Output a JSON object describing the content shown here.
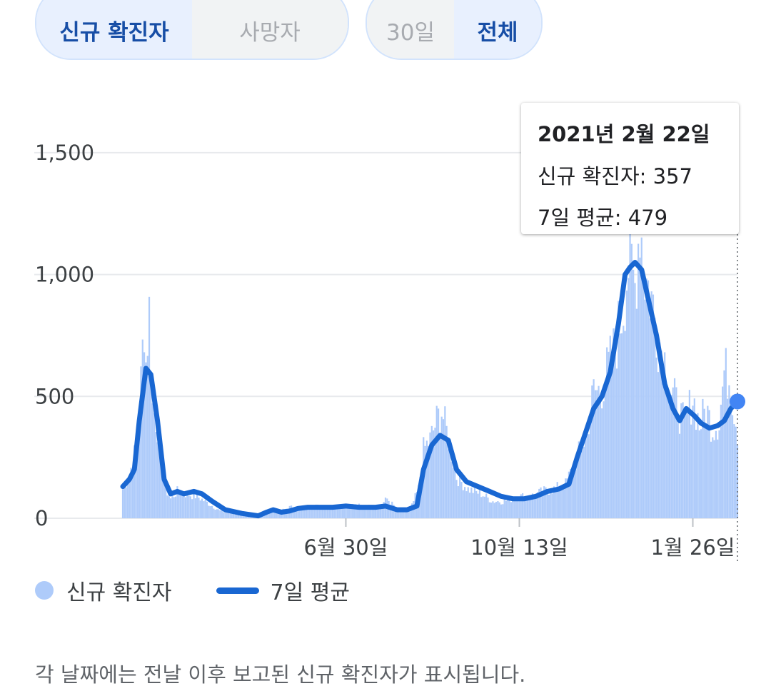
{
  "metric_toggle": {
    "options": [
      "신규 확진자",
      "사망자"
    ],
    "selected": 0
  },
  "range_toggle": {
    "options": [
      "30일",
      "전체"
    ],
    "selected": 1
  },
  "tooltip": {
    "date": "2021년 2월 22일",
    "cases_line": "신규 확진자: 357",
    "avg_line": "7일 평균: 479"
  },
  "legend": {
    "cases": "신규 확진자",
    "avg": "7일 평균"
  },
  "footnote": "각 날짜에는 전날 이후 보고된 신규 확진자가 표시됩니다.",
  "colors": {
    "bars": "#aecbfa",
    "line": "#1967d2",
    "marker": "#4285f4",
    "grid": "#e8eaed"
  },
  "chart_data": {
    "type": "bar",
    "x_start": "2020-02-16",
    "x_end": "2021-02-22",
    "ylim": [
      0,
      1650
    ],
    "yticks": [
      {
        "value": 0,
        "label": "0"
      },
      {
        "value": 500,
        "label": "500"
      },
      {
        "value": 1000,
        "label": "1,000"
      },
      {
        "value": 1500,
        "label": "1,500"
      }
    ],
    "xticks": [
      {
        "date": "2020-06-30",
        "label": "6월 30일"
      },
      {
        "date": "2020-10-13",
        "label": "10월 13일"
      },
      {
        "date": "2021-01-26",
        "label": "1월 26일"
      }
    ],
    "series": [
      {
        "name": "신규 확진자",
        "kind": "bar",
        "points": [
          [
            "2020-02-16",
            120
          ],
          [
            "2020-02-20",
            180
          ],
          [
            "2020-02-23",
            260
          ],
          [
            "2020-02-25",
            330
          ],
          [
            "2020-02-27",
            560
          ],
          [
            "2020-02-29",
            820
          ],
          [
            "2020-03-01",
            640
          ],
          [
            "2020-03-03",
            850
          ],
          [
            "2020-03-05",
            460
          ],
          [
            "2020-03-08",
            380
          ],
          [
            "2020-03-10",
            250
          ],
          [
            "2020-03-13",
            120
          ],
          [
            "2020-03-16",
            80
          ],
          [
            "2020-03-20",
            110
          ],
          [
            "2020-03-25",
            100
          ],
          [
            "2020-04-01",
            90
          ],
          [
            "2020-04-08",
            60
          ],
          [
            "2020-04-15",
            30
          ],
          [
            "2020-04-25",
            15
          ],
          [
            "2020-05-05",
            5
          ],
          [
            "2020-05-10",
            25
          ],
          [
            "2020-05-15",
            30
          ],
          [
            "2020-05-20",
            25
          ],
          [
            "2020-05-27",
            45
          ],
          [
            "2020-06-03",
            45
          ],
          [
            "2020-06-10",
            50
          ],
          [
            "2020-06-17",
            48
          ],
          [
            "2020-06-24",
            50
          ],
          [
            "2020-06-30",
            55
          ],
          [
            "2020-07-10",
            50
          ],
          [
            "2020-07-20",
            45
          ],
          [
            "2020-07-25",
            80
          ],
          [
            "2020-08-01",
            30
          ],
          [
            "2020-08-08",
            35
          ],
          [
            "2020-08-13",
            120
          ],
          [
            "2020-08-16",
            280
          ],
          [
            "2020-08-20",
            320
          ],
          [
            "2020-08-24",
            400
          ],
          [
            "2020-08-27",
            440
          ],
          [
            "2020-09-01",
            300
          ],
          [
            "2020-09-05",
            170
          ],
          [
            "2020-09-12",
            120
          ],
          [
            "2020-09-20",
            100
          ],
          [
            "2020-09-27",
            70
          ],
          [
            "2020-10-04",
            70
          ],
          [
            "2020-10-13",
            90
          ],
          [
            "2020-10-20",
            90
          ],
          [
            "2020-10-27",
            110
          ],
          [
            "2020-11-03",
            120
          ],
          [
            "2020-11-10",
            140
          ],
          [
            "2020-11-17",
            250
          ],
          [
            "2020-11-22",
            330
          ],
          [
            "2020-11-27",
            520
          ],
          [
            "2020-12-01",
            520
          ],
          [
            "2020-12-05",
            600
          ],
          [
            "2020-12-10",
            700
          ],
          [
            "2020-12-15",
            880
          ],
          [
            "2020-12-18",
            1050
          ],
          [
            "2020-12-22",
            950
          ],
          [
            "2020-12-25",
            1240
          ],
          [
            "2020-12-28",
            1000
          ],
          [
            "2021-01-01",
            900
          ],
          [
            "2021-01-05",
            750
          ],
          [
            "2021-01-09",
            650
          ],
          [
            "2021-01-13",
            520
          ],
          [
            "2021-01-17",
            450
          ],
          [
            "2021-01-21",
            380
          ],
          [
            "2021-01-26",
            500
          ],
          [
            "2021-01-30",
            380
          ],
          [
            "2021-02-03",
            450
          ],
          [
            "2021-02-07",
            370
          ],
          [
            "2021-02-11",
            400
          ],
          [
            "2021-02-14",
            600
          ],
          [
            "2021-02-17",
            580
          ],
          [
            "2021-02-20",
            450
          ],
          [
            "2021-02-22",
            357
          ]
        ]
      },
      {
        "name": "7일 평균",
        "kind": "line",
        "points": [
          [
            "2020-02-16",
            130
          ],
          [
            "2020-02-20",
            160
          ],
          [
            "2020-02-23",
            200
          ],
          [
            "2020-02-26",
            400
          ],
          [
            "2020-03-01",
            615
          ],
          [
            "2020-03-04",
            590
          ],
          [
            "2020-03-08",
            400
          ],
          [
            "2020-03-12",
            160
          ],
          [
            "2020-03-16",
            100
          ],
          [
            "2020-03-20",
            110
          ],
          [
            "2020-03-24",
            100
          ],
          [
            "2020-03-30",
            110
          ],
          [
            "2020-04-04",
            100
          ],
          [
            "2020-04-10",
            70
          ],
          [
            "2020-04-18",
            35
          ],
          [
            "2020-04-28",
            20
          ],
          [
            "2020-05-08",
            10
          ],
          [
            "2020-05-13",
            25
          ],
          [
            "2020-05-17",
            35
          ],
          [
            "2020-05-22",
            25
          ],
          [
            "2020-05-27",
            30
          ],
          [
            "2020-06-01",
            40
          ],
          [
            "2020-06-07",
            45
          ],
          [
            "2020-06-15",
            45
          ],
          [
            "2020-06-22",
            45
          ],
          [
            "2020-06-30",
            50
          ],
          [
            "2020-07-08",
            45
          ],
          [
            "2020-07-18",
            45
          ],
          [
            "2020-07-24",
            50
          ],
          [
            "2020-07-31",
            35
          ],
          [
            "2020-08-06",
            35
          ],
          [
            "2020-08-12",
            50
          ],
          [
            "2020-08-16",
            200
          ],
          [
            "2020-08-21",
            300
          ],
          [
            "2020-08-26",
            340
          ],
          [
            "2020-08-31",
            320
          ],
          [
            "2020-09-05",
            200
          ],
          [
            "2020-09-11",
            150
          ],
          [
            "2020-09-18",
            130
          ],
          [
            "2020-09-25",
            110
          ],
          [
            "2020-10-02",
            90
          ],
          [
            "2020-10-09",
            80
          ],
          [
            "2020-10-16",
            80
          ],
          [
            "2020-10-23",
            90
          ],
          [
            "2020-10-30",
            110
          ],
          [
            "2020-11-06",
            120
          ],
          [
            "2020-11-12",
            140
          ],
          [
            "2020-11-17",
            250
          ],
          [
            "2020-11-22",
            350
          ],
          [
            "2020-11-27",
            450
          ],
          [
            "2020-12-02",
            500
          ],
          [
            "2020-12-07",
            600
          ],
          [
            "2020-12-12",
            800
          ],
          [
            "2020-12-16",
            1000
          ],
          [
            "2020-12-19",
            1030
          ],
          [
            "2020-12-22",
            1050
          ],
          [
            "2020-12-26",
            1020
          ],
          [
            "2020-12-30",
            900
          ],
          [
            "2021-01-04",
            750
          ],
          [
            "2021-01-09",
            550
          ],
          [
            "2021-01-14",
            450
          ],
          [
            "2021-01-18",
            400
          ],
          [
            "2021-01-22",
            450
          ],
          [
            "2021-01-27",
            420
          ],
          [
            "2021-01-31",
            390
          ],
          [
            "2021-02-05",
            370
          ],
          [
            "2021-02-10",
            380
          ],
          [
            "2021-02-14",
            400
          ],
          [
            "2021-02-18",
            450
          ],
          [
            "2021-02-22",
            479
          ]
        ]
      }
    ]
  }
}
